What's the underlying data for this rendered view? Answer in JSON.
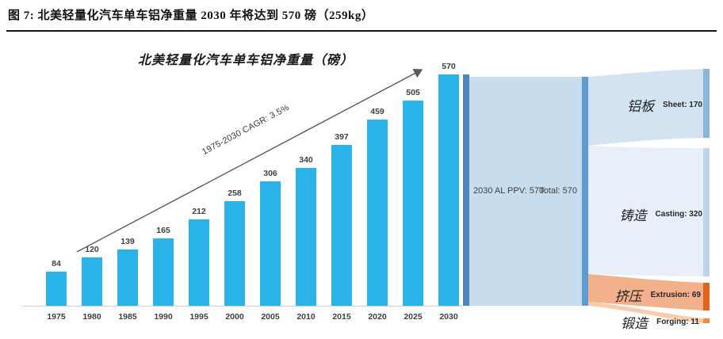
{
  "page": {
    "title": "图 7: 北美轻量化汽车单车铝净重量 2030 年将达到 570 磅（259kg）"
  },
  "chart_data": [
    {
      "type": "bar",
      "title": "北美轻量化汽车单车铝净重量（磅）",
      "categories": [
        "1975",
        "1980",
        "1985",
        "1990",
        "1995",
        "2000",
        "2005",
        "2010",
        "2015",
        "2020",
        "2025",
        "2030"
      ],
      "values": [
        84,
        120,
        139,
        165,
        212,
        258,
        306,
        340,
        397,
        459,
        505,
        570
      ],
      "ylim": [
        0,
        570
      ],
      "grid": false,
      "data_labels": true,
      "annotation": "1975-2030 CAGR: 3.5%",
      "bar_color": "#29b3e8"
    },
    {
      "type": "sankey",
      "source_label": "2030 AL PPV: 570",
      "source_value": 570,
      "total_label": "Total: 570",
      "total_value": 570,
      "branches": [
        {
          "name_cn": "铝板",
          "label_en": "Sheet: 170",
          "name_en": "Sheet",
          "value": 170
        },
        {
          "name_cn": "铸造",
          "label_en": "Casting: 320",
          "name_en": "Casting",
          "value": 320
        },
        {
          "name_cn": "挤压",
          "label_en": "Extrusion: 69",
          "name_en": "Extrusion",
          "value": 69
        },
        {
          "name_cn": "锻造",
          "label_en": "Forging: 11",
          "name_en": "Forging",
          "value": 11
        }
      ]
    }
  ],
  "colors": {
    "bar": "#29b3e8",
    "arrow": "#595959",
    "source_node": "#4e86bc",
    "flow_main": "#c7dcec",
    "total_node": "#5f9bd0",
    "sheet_flow": "#d3e3f2",
    "sheet_node": "#8ab7d9",
    "casting_flow": "#e8eff8",
    "casting_node": "#bcd5ec",
    "extrusion_flow": "#f3b18b",
    "extrusion_node": "#e2631b",
    "forging_flow": "#f7cdad",
    "forging_node": "#ef8b3f"
  }
}
